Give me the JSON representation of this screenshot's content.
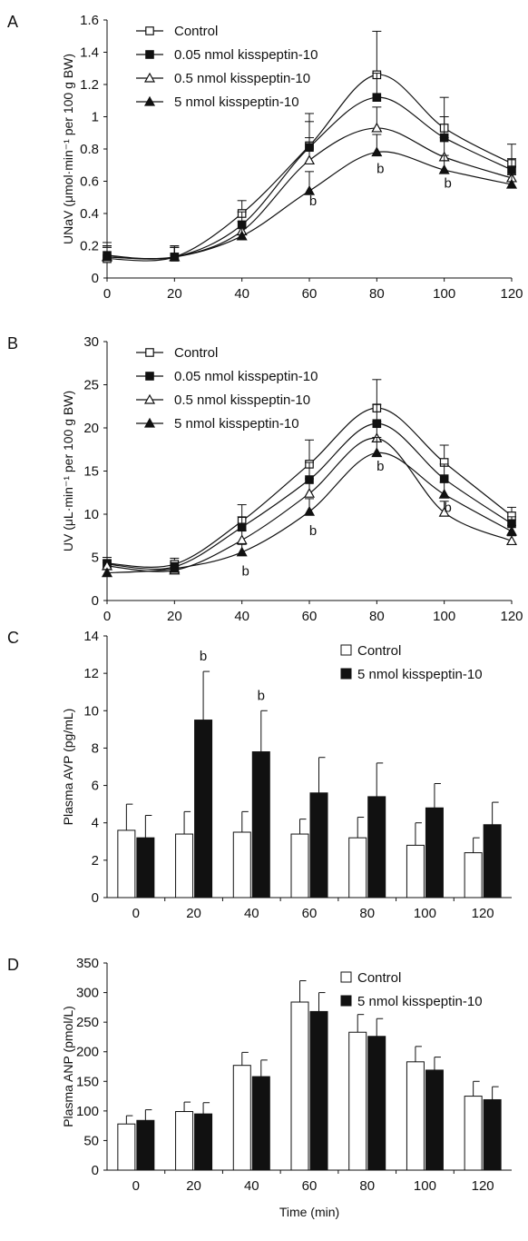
{
  "chart_data": [
    {
      "panel": "A",
      "type": "line",
      "ylabel": "UNaV (μmol·min⁻¹ per 100 g BW)",
      "xlabel": "",
      "x": [
        0,
        20,
        40,
        60,
        80,
        100,
        120
      ],
      "xticks": [
        "0",
        "20",
        "40",
        "60",
        "80",
        "100",
        "120"
      ],
      "ylim": [
        0,
        1.6
      ],
      "yticks": [
        "0",
        "0.2",
        "0.4",
        "0.6",
        "0.8",
        "1",
        "1.2",
        "1.4",
        "1.6"
      ],
      "legend_position": "top-left",
      "series": [
        {
          "name": "Control",
          "marker": "square-open",
          "values": [
            0.12,
            0.13,
            0.4,
            0.82,
            1.26,
            0.93,
            0.71
          ],
          "errors": [
            0.1,
            0.07,
            0.08,
            0.2,
            0.27,
            0.19,
            0.12
          ]
        },
        {
          "name": "0.05 nmol kisspeptin-10",
          "marker": "square-filled",
          "values": [
            0.14,
            0.13,
            0.33,
            0.81,
            1.12,
            0.87,
            0.67
          ],
          "errors": [
            0.06,
            0.06,
            0.08,
            0.16,
            0.15,
            0.13,
            0.07
          ]
        },
        {
          "name": "0.5 nmol kisspeptin-10",
          "marker": "triangle-open",
          "values": [
            0.13,
            0.13,
            0.29,
            0.73,
            0.93,
            0.75,
            0.62
          ],
          "errors": [
            0.06,
            0.06,
            0.06,
            0.14,
            0.13,
            0.12,
            0.07
          ]
        },
        {
          "name": "5 nmol kisspeptin-10",
          "marker": "triangle-filled",
          "values": [
            0.13,
            0.13,
            0.26,
            0.54,
            0.78,
            0.67,
            0.58
          ],
          "errors": [
            0.06,
            0.06,
            0.05,
            0.12,
            0.11,
            0.09,
            0.06
          ]
        }
      ],
      "annotations": [
        {
          "text": "b",
          "x": 60,
          "y": 0.48
        },
        {
          "text": "b",
          "x": 80,
          "y": 0.68
        },
        {
          "text": "b",
          "x": 100,
          "y": 0.59
        }
      ]
    },
    {
      "panel": "B",
      "type": "line",
      "ylabel": "UV (μL·min⁻¹ per 100 g BW)",
      "xlabel": "",
      "x": [
        0,
        20,
        40,
        60,
        80,
        100,
        120
      ],
      "xticks": [
        "0",
        "20",
        "40",
        "60",
        "80",
        "100",
        "120"
      ],
      "ylim": [
        0,
        30
      ],
      "yticks": [
        "0",
        "5",
        "10",
        "15",
        "20",
        "25",
        "30"
      ],
      "legend_position": "top-left",
      "series": [
        {
          "name": "Control",
          "marker": "square-open",
          "values": [
            4.3,
            4.2,
            9.2,
            15.8,
            22.3,
            16,
            9.8
          ],
          "errors": [
            0.7,
            0.7,
            1.9,
            2.8,
            3.3,
            2,
            1
          ]
        },
        {
          "name": "0.05 nmol kisspeptin-10",
          "marker": "square-filled",
          "values": [
            4.2,
            3.9,
            8.5,
            14.0,
            20.5,
            14.1,
            8.9
          ],
          "errors": [
            0.5,
            0.5,
            1.2,
            2.0,
            2.2,
            1.7,
            0.8
          ]
        },
        {
          "name": "0.5 nmol kisspeptin-10",
          "marker": "triangle-open",
          "values": [
            4,
            3.5,
            7,
            12.4,
            18.8,
            10.2,
            6.9
          ],
          "errors": [
            0.4,
            0.4,
            1.1,
            1.7,
            1.9,
            1.3,
            0.6
          ]
        },
        {
          "name": "5 nmol kisspeptin-10",
          "marker": "triangle-filled",
          "values": [
            3.2,
            3.7,
            5.6,
            10.3,
            17.1,
            12.3,
            8
          ],
          "errors": [
            0.4,
            0.4,
            0.9,
            1.5,
            1.8,
            1.4,
            0.7
          ]
        }
      ],
      "annotations": [
        {
          "text": "b",
          "x": 40,
          "y": 3.4
        },
        {
          "text": "b",
          "x": 60,
          "y": 8.1
        },
        {
          "text": "b",
          "x": 80,
          "y": 15.6
        },
        {
          "text": "b",
          "x": 100,
          "y": 10.8
        }
      ]
    },
    {
      "panel": "C",
      "type": "bar",
      "ylabel": "Plasma AVP (pg/mL)",
      "xlabel": "",
      "categories": [
        "0",
        "20",
        "40",
        "60",
        "80",
        "100",
        "120"
      ],
      "ylim": [
        0,
        14
      ],
      "yticks": [
        "0",
        "2",
        "4",
        "6",
        "8",
        "10",
        "12",
        "14"
      ],
      "legend_position": "top-right",
      "series": [
        {
          "name": "Control",
          "fill": "#ffffff",
          "values": [
            3.6,
            3.4,
            3.5,
            3.4,
            3.2,
            2.8,
            2.4
          ],
          "errors": [
            1.4,
            1.2,
            1.1,
            0.8,
            1.1,
            1.2,
            0.8
          ]
        },
        {
          "name": "5 nmol kisspeptin-10",
          "fill": "#111111",
          "values": [
            3.2,
            9.5,
            7.8,
            5.6,
            5.4,
            4.8,
            3.9
          ],
          "errors": [
            1.2,
            2.6,
            2.2,
            1.9,
            1.8,
            1.3,
            1.2
          ]
        }
      ],
      "annotations": [
        {
          "text": "b",
          "category": "20",
          "series": 1
        },
        {
          "text": "b",
          "category": "40",
          "series": 1
        }
      ]
    },
    {
      "panel": "D",
      "type": "bar",
      "ylabel": "Plasma ANP (pmol/L)",
      "xlabel": "Time (min)",
      "categories": [
        "0",
        "20",
        "40",
        "60",
        "80",
        "100",
        "120"
      ],
      "ylim": [
        0,
        350
      ],
      "yticks": [
        "0",
        "50",
        "100",
        "150",
        "200",
        "250",
        "300",
        "350"
      ],
      "legend_position": "top-right",
      "series": [
        {
          "name": "Control",
          "fill": "#ffffff",
          "values": [
            78,
            99,
            177,
            284,
            233,
            183,
            125
          ],
          "errors": [
            14,
            16,
            22,
            36,
            30,
            26,
            25
          ]
        },
        {
          "name": "5 nmol kisspeptin-10",
          "fill": "#111111",
          "values": [
            84,
            95,
            158,
            268,
            226,
            169,
            119
          ],
          "errors": [
            18,
            19,
            28,
            32,
            30,
            22,
            22
          ]
        }
      ],
      "annotations": []
    }
  ]
}
